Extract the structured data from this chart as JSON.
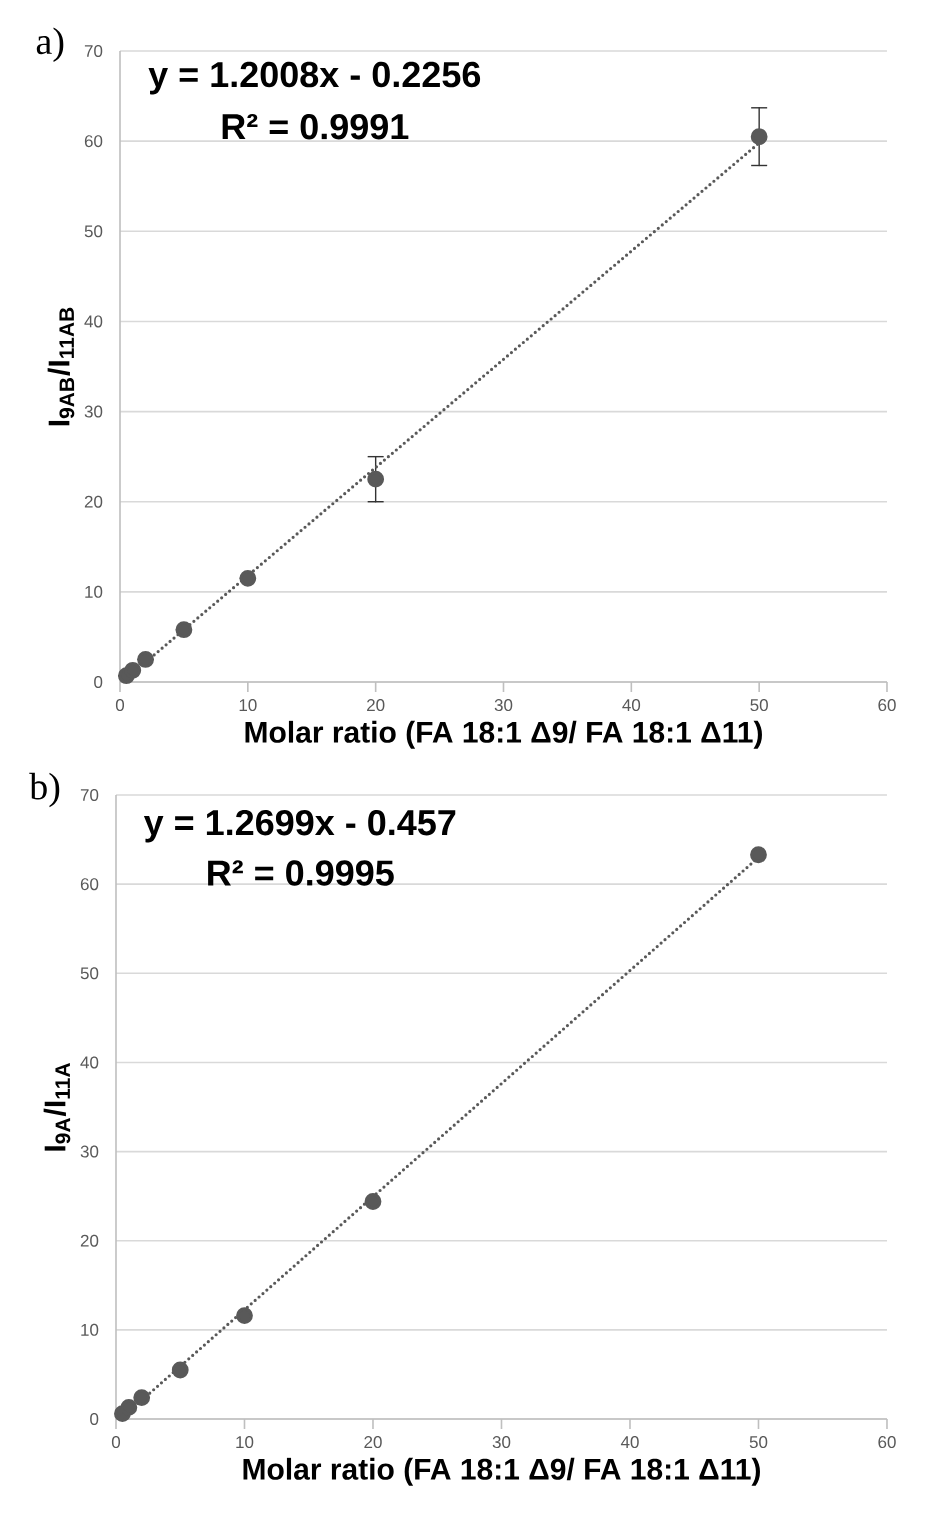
{
  "chart_data": [
    {
      "type": "scatter",
      "title": "a)",
      "xlabel": "Molar ratio (FA 18:1 Δ9/ FA 18:1 Δ11)",
      "ylabel": "**I$_{9AB}$/I$_{11AB}$**",
      "annotations": [
        "y = 1.2008x - 0.2256",
        "R² = 0.9991"
      ],
      "xlim": [
        0,
        60
      ],
      "ylim": [
        0,
        70
      ],
      "xticks": [
        0,
        10,
        20,
        30,
        40,
        50,
        60
      ],
      "yticks": [
        0,
        10,
        20,
        30,
        40,
        50,
        60,
        70
      ],
      "grid": "y",
      "series": [
        {
          "marker": "circle",
          "color": "#595959",
          "x": [
            0.5,
            1,
            2,
            5,
            10,
            20,
            50
          ],
          "values": [
            0.7,
            1.3,
            2.5,
            5.8,
            11.5,
            22.5,
            60.5
          ],
          "errors": [
            null,
            null,
            null,
            null,
            null,
            2.5,
            3.2
          ]
        },
        {
          "type": "line",
          "marker": "none",
          "line_style": "dotted",
          "color": "#595959",
          "x": [
            0.5,
            50
          ],
          "values": [
            0.4,
            59.8
          ]
        }
      ]
    },
    {
      "type": "scatter",
      "title": "b)",
      "xlabel": "Molar ratio (FA 18:1 Δ9/ FA 18:1 Δ11)",
      "ylabel": "**I$_{9A}$/I$_{11A}$**",
      "annotations": [
        "y = 1.2699x - 0.457",
        "R² = 0.9995"
      ],
      "xlim": [
        0,
        60
      ],
      "ylim": [
        0,
        70
      ],
      "xticks": [
        0,
        10,
        20,
        30,
        40,
        50,
        60
      ],
      "yticks": [
        0,
        10,
        20,
        30,
        40,
        50,
        60,
        70
      ],
      "grid": "y",
      "series": [
        {
          "marker": "circle",
          "color": "#595959",
          "x": [
            0.5,
            1,
            2,
            5,
            10,
            20,
            50
          ],
          "values": [
            0.6,
            1.3,
            2.4,
            5.5,
            11.6,
            24.4,
            63.3
          ]
        },
        {
          "type": "line",
          "marker": "none",
          "line_style": "dotted",
          "color": "#595959",
          "x": [
            0.5,
            50
          ],
          "values": [
            0.2,
            63.0
          ]
        }
      ]
    }
  ]
}
